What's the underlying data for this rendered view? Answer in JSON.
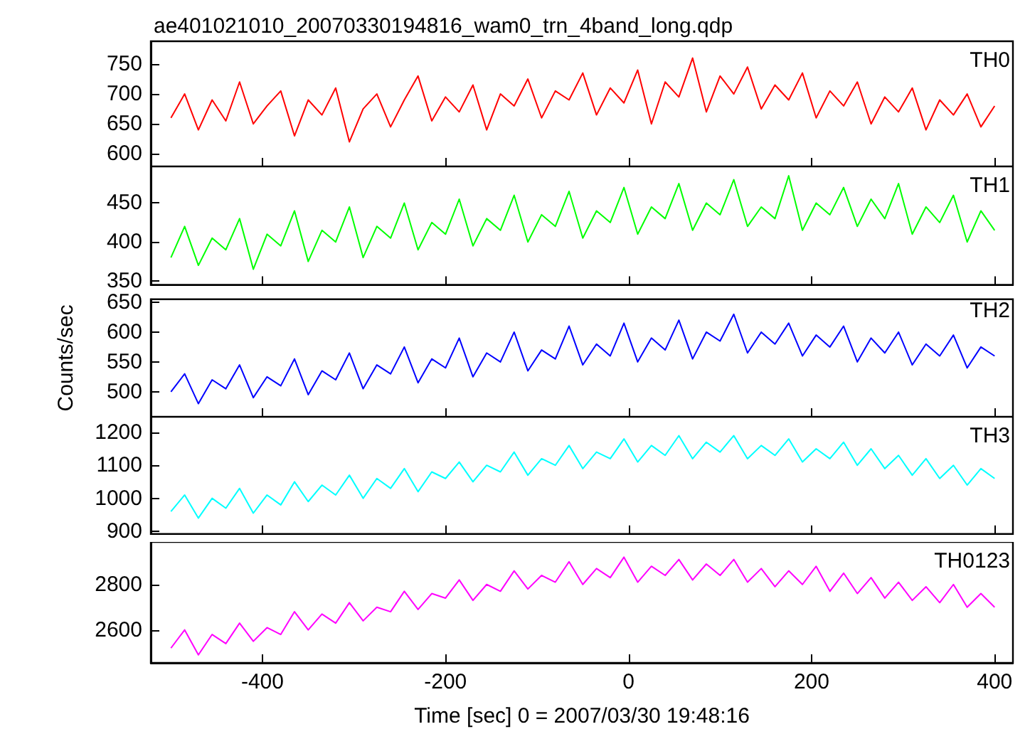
{
  "chart_data": [
    {
      "type": "line",
      "title": "ae401021010_20070330194816_wam0_trn_4band_long.qdp",
      "tick_labels": "y",
      "xlim": [
        -522,
        420
      ],
      "xticks": [
        -400,
        -200,
        0,
        200,
        400
      ],
      "ylim": [
        579,
        788
      ],
      "yticks": [
        600,
        650,
        700,
        750
      ],
      "x": [
        -500,
        -485,
        -470,
        -455,
        -440,
        -425,
        -410,
        -395,
        -380,
        -365,
        -350,
        -335,
        -320,
        -305,
        -290,
        -275,
        -260,
        -245,
        -230,
        -215,
        -200,
        -185,
        -170,
        -155,
        -140,
        -125,
        -110,
        -95,
        -80,
        -65,
        -50,
        -35,
        -20,
        -5,
        10,
        25,
        40,
        55,
        70,
        85,
        100,
        115,
        130,
        145,
        160,
        175,
        190,
        205,
        220,
        235,
        250,
        265,
        280,
        295,
        310,
        325,
        340,
        355,
        370,
        385,
        400
      ],
      "series": [
        {
          "name": "TH0",
          "color": "#ff0000",
          "values": [
            660,
            700,
            640,
            690,
            655,
            720,
            650,
            680,
            705,
            630,
            690,
            665,
            710,
            620,
            675,
            700,
            645,
            690,
            730,
            655,
            695,
            670,
            715,
            640,
            700,
            680,
            725,
            660,
            705,
            690,
            735,
            665,
            710,
            685,
            740,
            650,
            720,
            695,
            760,
            670,
            730,
            700,
            745,
            675,
            715,
            690,
            735,
            660,
            705,
            680,
            720,
            650,
            695,
            670,
            710,
            640,
            690,
            665,
            700,
            645,
            680
          ]
        }
      ]
    },
    {
      "type": "line",
      "tick_labels": "y",
      "xlim": [
        -522,
        420
      ],
      "xticks": [
        -400,
        -200,
        0,
        200,
        400
      ],
      "ylim": [
        345,
        497
      ],
      "yticks": [
        350,
        400,
        450
      ],
      "x": [
        -500,
        -485,
        -470,
        -455,
        -440,
        -425,
        -410,
        -395,
        -380,
        -365,
        -350,
        -335,
        -320,
        -305,
        -290,
        -275,
        -260,
        -245,
        -230,
        -215,
        -200,
        -185,
        -170,
        -155,
        -140,
        -125,
        -110,
        -95,
        -80,
        -65,
        -50,
        -35,
        -20,
        -5,
        10,
        25,
        40,
        55,
        70,
        85,
        100,
        115,
        130,
        145,
        160,
        175,
        190,
        205,
        220,
        235,
        250,
        265,
        280,
        295,
        310,
        325,
        340,
        355,
        370,
        385,
        400
      ],
      "series": [
        {
          "name": "TH1",
          "color": "#00ff00",
          "values": [
            380,
            420,
            370,
            405,
            390,
            430,
            365,
            410,
            395,
            440,
            375,
            415,
            400,
            445,
            380,
            420,
            405,
            450,
            390,
            425,
            410,
            455,
            395,
            430,
            415,
            460,
            400,
            435,
            420,
            465,
            405,
            440,
            425,
            470,
            410,
            445,
            430,
            475,
            415,
            450,
            435,
            480,
            420,
            445,
            430,
            485,
            415,
            450,
            435,
            470,
            420,
            455,
            430,
            475,
            410,
            445,
            425,
            460,
            400,
            440,
            415
          ]
        }
      ]
    },
    {
      "type": "line",
      "ylabel": "Counts/sec",
      "tick_labels": "y",
      "xlim": [
        -522,
        420
      ],
      "xticks": [
        -400,
        -200,
        0,
        200,
        400
      ],
      "ylim": [
        458,
        655
      ],
      "yticks": [
        500,
        550,
        600,
        650
      ],
      "x": [
        -500,
        -485,
        -470,
        -455,
        -440,
        -425,
        -410,
        -395,
        -380,
        -365,
        -350,
        -335,
        -320,
        -305,
        -290,
        -275,
        -260,
        -245,
        -230,
        -215,
        -200,
        -185,
        -170,
        -155,
        -140,
        -125,
        -110,
        -95,
        -80,
        -65,
        -50,
        -35,
        -20,
        -5,
        10,
        25,
        40,
        55,
        70,
        85,
        100,
        115,
        130,
        145,
        160,
        175,
        190,
        205,
        220,
        235,
        250,
        265,
        280,
        295,
        310,
        325,
        340,
        355,
        370,
        385,
        400
      ],
      "series": [
        {
          "name": "TH2",
          "color": "#0000ff",
          "values": [
            500,
            530,
            480,
            520,
            505,
            545,
            490,
            525,
            510,
            555,
            495,
            535,
            520,
            565,
            505,
            545,
            530,
            575,
            515,
            555,
            540,
            590,
            525,
            565,
            550,
            600,
            535,
            570,
            555,
            610,
            545,
            580,
            560,
            615,
            550,
            590,
            570,
            620,
            555,
            600,
            585,
            630,
            565,
            600,
            580,
            615,
            560,
            595,
            575,
            610,
            550,
            590,
            565,
            600,
            545,
            580,
            560,
            595,
            540,
            575,
            560
          ]
        }
      ]
    },
    {
      "type": "line",
      "tick_labels": "y",
      "xlim": [
        -522,
        420
      ],
      "xticks": [
        -400,
        -200,
        0,
        200,
        400
      ],
      "ylim": [
        892,
        1247
      ],
      "yticks": [
        900,
        1000,
        1100,
        1200
      ],
      "x": [
        -500,
        -485,
        -470,
        -455,
        -440,
        -425,
        -410,
        -395,
        -380,
        -365,
        -350,
        -335,
        -320,
        -305,
        -290,
        -275,
        -260,
        -245,
        -230,
        -215,
        -200,
        -185,
        -170,
        -155,
        -140,
        -125,
        -110,
        -95,
        -80,
        -65,
        -50,
        -35,
        -20,
        -5,
        10,
        25,
        40,
        55,
        70,
        85,
        100,
        115,
        130,
        145,
        160,
        175,
        190,
        205,
        220,
        235,
        250,
        265,
        280,
        295,
        310,
        325,
        340,
        355,
        370,
        385,
        400
      ],
      "series": [
        {
          "name": "TH3",
          "color": "#00ffff",
          "values": [
            960,
            1010,
            940,
            1000,
            970,
            1030,
            955,
            1010,
            980,
            1050,
            990,
            1040,
            1010,
            1070,
            1000,
            1060,
            1030,
            1090,
            1020,
            1080,
            1060,
            1110,
            1050,
            1100,
            1080,
            1140,
            1070,
            1120,
            1100,
            1160,
            1090,
            1140,
            1120,
            1180,
            1110,
            1160,
            1130,
            1190,
            1120,
            1170,
            1140,
            1190,
            1120,
            1160,
            1130,
            1180,
            1110,
            1150,
            1120,
            1170,
            1100,
            1150,
            1090,
            1130,
            1070,
            1120,
            1060,
            1100,
            1040,
            1090,
            1060
          ]
        }
      ]
    },
    {
      "type": "line",
      "xlabel": "Time [sec] 0 = 2007/03/30 19:48:16",
      "xlim": [
        -522,
        420
      ],
      "xticks": [
        -400,
        -200,
        0,
        200,
        400
      ],
      "ylim": [
        2455,
        2987
      ],
      "yticks": [
        2600,
        2800
      ],
      "x": [
        -500,
        -485,
        -470,
        -455,
        -440,
        -425,
        -410,
        -395,
        -380,
        -365,
        -350,
        -335,
        -320,
        -305,
        -290,
        -275,
        -260,
        -245,
        -230,
        -215,
        -200,
        -185,
        -170,
        -155,
        -140,
        -125,
        -110,
        -95,
        -80,
        -65,
        -50,
        -35,
        -20,
        -5,
        10,
        25,
        40,
        55,
        70,
        85,
        100,
        115,
        130,
        145,
        160,
        175,
        190,
        205,
        220,
        235,
        250,
        265,
        280,
        295,
        310,
        325,
        340,
        355,
        370,
        385,
        400
      ],
      "series": [
        {
          "name": "TH0123",
          "color": "#ff00ff",
          "values": [
            2520,
            2600,
            2490,
            2580,
            2540,
            2630,
            2550,
            2610,
            2580,
            2680,
            2600,
            2670,
            2630,
            2720,
            2640,
            2700,
            2680,
            2770,
            2690,
            2760,
            2740,
            2820,
            2730,
            2800,
            2770,
            2860,
            2780,
            2840,
            2810,
            2900,
            2800,
            2870,
            2830,
            2920,
            2810,
            2880,
            2840,
            2910,
            2820,
            2890,
            2840,
            2910,
            2810,
            2870,
            2790,
            2860,
            2800,
            2880,
            2770,
            2850,
            2760,
            2830,
            2740,
            2810,
            2730,
            2790,
            2720,
            2800,
            2700,
            2760,
            2700
          ]
        }
      ]
    }
  ]
}
